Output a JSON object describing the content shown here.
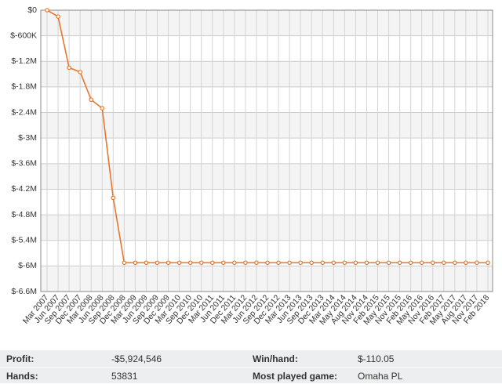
{
  "chart_data": {
    "type": "line",
    "categories": [
      "Mar 2007",
      "Jun 2007",
      "Sep 2007",
      "Dec 2007",
      "Mar 2008",
      "Jun 2008",
      "Sep 2008",
      "Dec 2008",
      "Mar 2009",
      "Jun 2009",
      "Sep 2009",
      "Dec 2009",
      "Mar 2010",
      "Sep 2010",
      "Dec 2010",
      "Mar 2011",
      "Jun 2011",
      "Dec 2011",
      "Mar 2012",
      "Jun 2012",
      "Sep 2012",
      "Dec 2012",
      "Mar 2013",
      "Jun 2013",
      "Sep 2013",
      "Dec 2013",
      "Mar 2014",
      "May 2014",
      "Aug 2014",
      "Nov 2014",
      "Feb 2015",
      "May 2015",
      "Nov 2015",
      "Feb 2016",
      "May 2016",
      "Nov 2016",
      "Feb 2017",
      "May 2017",
      "Aug 2017",
      "Nov 2017",
      "Feb 2018"
    ],
    "series": [
      {
        "color": "#e8772e",
        "values": [
          0,
          -150000,
          -1350000,
          -1450000,
          -2100000,
          -2300000,
          -4400000,
          -5924546,
          -5924546,
          -5924546,
          -5924546,
          -5924546,
          -5924546,
          -5924546,
          -5924546,
          -5924546,
          -5924546,
          -5924546,
          -5924546,
          -5924546,
          -5924546,
          -5924546,
          -5924546,
          -5924546,
          -5924546,
          -5924546,
          -5924546,
          -5924546,
          -5924546,
          -5924546,
          -5924546,
          -5924546,
          -5924546,
          -5924546,
          -5924546,
          -5924546,
          -5924546,
          -5924546,
          -5924546,
          -5924546,
          -5924546
        ]
      }
    ],
    "ylim": [
      -6600000,
      0
    ],
    "yticks": [
      {
        "value": 0,
        "label": "$0"
      },
      {
        "value": -600000,
        "label": "$-600K"
      },
      {
        "value": -1200000,
        "label": "$-1.2M"
      },
      {
        "value": -1800000,
        "label": "$-1.8M"
      },
      {
        "value": -2400000,
        "label": "$-2.4M"
      },
      {
        "value": -3000000,
        "label": "$-3M"
      },
      {
        "value": -3600000,
        "label": "$-3.6M"
      },
      {
        "value": -4200000,
        "label": "$-4.2M"
      },
      {
        "value": -4800000,
        "label": "$-4.8M"
      },
      {
        "value": -5400000,
        "label": "$-5.4M"
      },
      {
        "value": -6000000,
        "label": "$-6M"
      },
      {
        "value": -6600000,
        "label": "$-6.6M"
      }
    ],
    "grid": true
  },
  "stats": [
    {
      "label": "Profit:",
      "value": "-$5,924,546"
    },
    {
      "label": "Win/hand:",
      "value": "$-110.05"
    },
    {
      "label": "Hands:",
      "value": "53831"
    },
    {
      "label": "Most played game:",
      "value": "Omaha PL"
    }
  ]
}
